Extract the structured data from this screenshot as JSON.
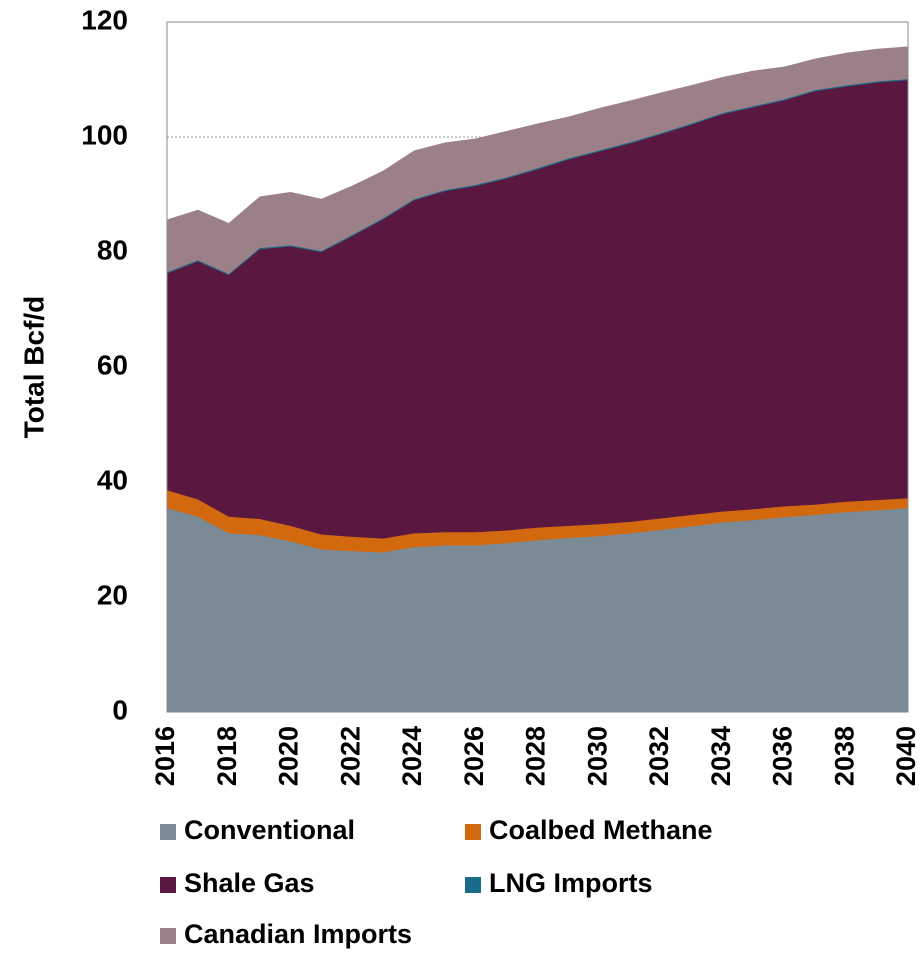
{
  "chart_data": {
    "type": "stacked_area",
    "y_label": "Total Bcf/d",
    "x": [
      2016,
      2017,
      2018,
      2019,
      2020,
      2021,
      2022,
      2023,
      2024,
      2025,
      2026,
      2027,
      2028,
      2029,
      2030,
      2031,
      2032,
      2033,
      2034,
      2035,
      2036,
      2037,
      2038,
      2039,
      2040
    ],
    "xlim": [
      2016,
      2040
    ],
    "xticks": [
      2016,
      2018,
      2020,
      2022,
      2024,
      2026,
      2028,
      2030,
      2032,
      2034,
      2036,
      2038,
      2040
    ],
    "ylim": [
      0,
      120
    ],
    "yticks": [
      0,
      20,
      40,
      60,
      80,
      100,
      120
    ],
    "grid": true,
    "series": [
      {
        "name": "Conventional",
        "color": "#7a8a96",
        "values": [
          35.5,
          34,
          31.1,
          30.8,
          29.7,
          28.3,
          28,
          27.8,
          28.7,
          29,
          29,
          29.4,
          29.9,
          30.3,
          30.6,
          31.1,
          31.7,
          32.3,
          33,
          33.4,
          33.9,
          34.3,
          34.8,
          35.1,
          35.5
        ]
      },
      {
        "name": "Coalbed Methane",
        "color": "#d3690f",
        "values": [
          3.1,
          3.0,
          2.9,
          2.8,
          2.7,
          2.6,
          2.5,
          2.4,
          2.4,
          2.3,
          2.3,
          2.2,
          2.2,
          2.1,
          2.1,
          2.0,
          2.0,
          2.0,
          1.9,
          1.9,
          1.9,
          1.8,
          1.8,
          1.8,
          1.7
        ]
      },
      {
        "name": "Shale Gas",
        "color": "#5a1740",
        "values": [
          37.7,
          41.4,
          42.0,
          46.9,
          48.6,
          49.1,
          52.3,
          55.5,
          57.9,
          59.3,
          60.2,
          61.2,
          62.3,
          63.7,
          64.8,
          65.8,
          66.8,
          67.9,
          69.1,
          69.9,
          70.6,
          71.9,
          72.2,
          72.6,
          72.7
        ]
      },
      {
        "name": "LNG Imports",
        "color": "#1a6a8a",
        "values": [
          0.2,
          0.2,
          0.2,
          0.2,
          0.2,
          0.2,
          0.2,
          0.2,
          0.2,
          0.2,
          0.2,
          0.2,
          0.2,
          0.2,
          0.2,
          0.2,
          0.2,
          0.2,
          0.2,
          0.2,
          0.2,
          0.2,
          0.2,
          0.2,
          0.2
        ]
      },
      {
        "name": "Canadian Imports",
        "color": "#9c8088",
        "values": [
          9.1,
          8.7,
          8.8,
          8.9,
          9.2,
          9.0,
          8.5,
          8.2,
          8.4,
          8.2,
          8.0,
          8.0,
          7.7,
          7.2,
          7.3,
          7.2,
          7.0,
          6.6,
          6.2,
          6.1,
          5.6,
          5.4,
          5.6,
          5.6,
          5.6
        ]
      }
    ]
  }
}
